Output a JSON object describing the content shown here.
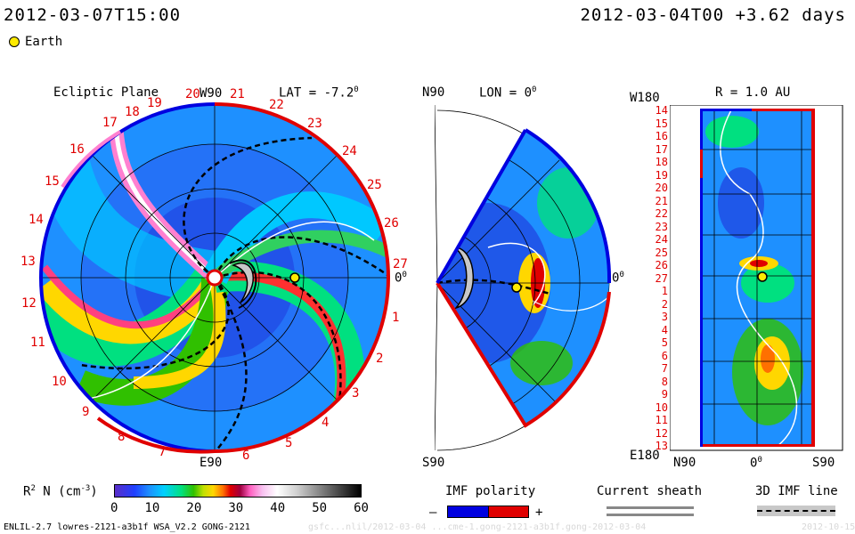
{
  "header": {
    "sim_time": "2012-03-07T15:00",
    "run_info": "2012-03-04T00 +3.62 days",
    "legend_earth": "Earth"
  },
  "panels": {
    "ecliptic": {
      "title": "Ecliptic Plane",
      "lat_label": "LAT = -7.2",
      "lat_deg": "0",
      "top_label": "W90",
      "bottom_label": "E90",
      "right_label": "0",
      "right_deg": "0",
      "ring_numbers": [
        "19",
        "20",
        "21",
        "22",
        "23",
        "24",
        "25",
        "26",
        "27",
        "1",
        "2",
        "3",
        "4",
        "5",
        "6",
        "7",
        "8",
        "9",
        "10",
        "11",
        "12",
        "13",
        "14",
        "15",
        "16",
        "17",
        "18"
      ]
    },
    "meridional": {
      "top_label": "N90",
      "lon_label": "LON = 0",
      "lon_deg": "0",
      "bottom_label": "S90",
      "right_label": "0",
      "right_deg": "0"
    },
    "radial": {
      "title": "R = 1.0 AU",
      "top_left_label": "W180",
      "bottom_left_label": "E180",
      "row_labels": [
        "14",
        "15",
        "16",
        "17",
        "18",
        "19",
        "20",
        "21",
        "22",
        "23",
        "24",
        "25",
        "26",
        "27",
        "1",
        "2",
        "3",
        "4",
        "5",
        "6",
        "7",
        "8",
        "9",
        "10",
        "11",
        "12",
        "13"
      ],
      "x_labels": [
        "N90",
        "0",
        "S90"
      ],
      "x_mid_deg": "0"
    }
  },
  "colorbar": {
    "label_main": "R",
    "label_sup": "2",
    "label_rest": " N (cm",
    "label_exp": "-3",
    "label_end": ")",
    "ticks": [
      "0",
      "10",
      "20",
      "30",
      "40",
      "50",
      "60"
    ]
  },
  "legends": {
    "imf_polarity": "IMF polarity",
    "minus": "–",
    "plus": "+",
    "current_sheath": "Current sheath",
    "imf_line": "3D IMF line"
  },
  "footer": {
    "model": "ENLIL-2.7 lowres-2121-a3b1f WSA_V2.2 GONG-2121",
    "path": "gsfc...nlil/2012-03-04 ...cme-1.gong-2121-a3b1f.gong-2012-03-04",
    "version": "2012-10-15"
  },
  "colors": {
    "accent_red": "#e00000",
    "polarity_blue": "#0000e0",
    "earth_yellow": "#ffeb00"
  }
}
